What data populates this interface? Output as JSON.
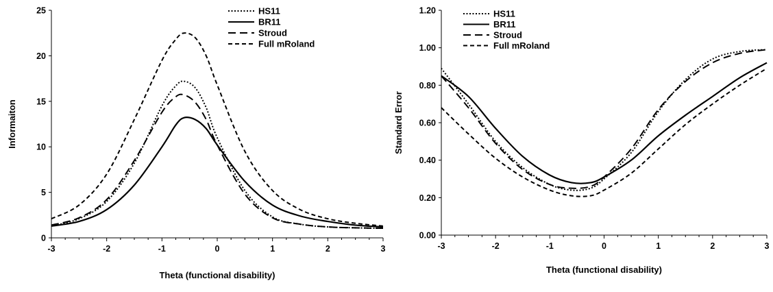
{
  "chart_data": [
    {
      "type": "line",
      "xlabel": "Theta (functional disability)",
      "ylabel": "Informaiton",
      "xlim": [
        -3,
        3
      ],
      "ylim": [
        0,
        25
      ],
      "xticks": [
        -3,
        -2,
        -1,
        0,
        1,
        2,
        3
      ],
      "yticks": [
        0,
        5,
        10,
        15,
        20,
        25
      ],
      "ytick_labels": [
        "0",
        "5",
        "10",
        "15",
        "20",
        "25"
      ],
      "grid": false,
      "legend_position": "top-right",
      "series": [
        {
          "name": "HS11",
          "style": "dotted",
          "x": [
            -3,
            -2.5,
            -2,
            -1.5,
            -1,
            -0.75,
            -0.6,
            -0.4,
            -0.2,
            0,
            0.5,
            1,
            1.5,
            2,
            2.5,
            3
          ],
          "y": [
            1.3,
            2.1,
            4.0,
            8.2,
            14.5,
            16.7,
            17.2,
            16.5,
            14.3,
            11.0,
            5.2,
            2.3,
            1.5,
            1.2,
            1.1,
            1.05
          ]
        },
        {
          "name": "BR11",
          "style": "solid",
          "x": [
            -3,
            -2.5,
            -2,
            -1.5,
            -1,
            -0.75,
            -0.6,
            -0.4,
            -0.2,
            0,
            0.5,
            1,
            1.5,
            2,
            2.5,
            3
          ],
          "y": [
            1.3,
            1.8,
            3.1,
            5.8,
            10.0,
            12.4,
            13.2,
            13.0,
            12.0,
            10.2,
            6.2,
            3.6,
            2.4,
            1.8,
            1.4,
            1.2
          ]
        },
        {
          "name": "Stroud",
          "style": "long-dash",
          "x": [
            -3,
            -2.5,
            -2,
            -1.5,
            -1,
            -0.75,
            -0.6,
            -0.4,
            -0.2,
            0,
            0.5,
            1,
            1.5,
            2,
            2.5,
            3
          ],
          "y": [
            1.4,
            2.2,
            4.2,
            8.5,
            13.8,
            15.5,
            15.7,
            14.9,
            13.0,
            10.2,
            4.8,
            2.2,
            1.5,
            1.2,
            1.1,
            1.05
          ]
        },
        {
          "name": "Full mRoland",
          "style": "short-dash",
          "x": [
            -3,
            -2.5,
            -2,
            -1.5,
            -1,
            -0.75,
            -0.6,
            -0.4,
            -0.2,
            0,
            0.5,
            1,
            1.5,
            2,
            2.5,
            3
          ],
          "y": [
            2.1,
            3.6,
            7.0,
            13.0,
            19.5,
            21.8,
            22.5,
            22.0,
            20.0,
            16.8,
            9.5,
            5.2,
            3.1,
            2.1,
            1.6,
            1.3
          ]
        }
      ]
    },
    {
      "type": "line",
      "xlabel": "Theta (functional disability)",
      "ylabel": "Standard Error",
      "xlim": [
        -3,
        3
      ],
      "ylim": [
        0,
        1.2
      ],
      "xticks": [
        -3,
        -2,
        -1,
        0,
        1,
        2,
        3
      ],
      "yticks": [
        0,
        0.2,
        0.4,
        0.6,
        0.8,
        1.0,
        1.2
      ],
      "ytick_labels": [
        "0.00",
        "0.20",
        "0.40",
        "0.60",
        "0.80",
        "1.00",
        "1.20"
      ],
      "grid": false,
      "legend_position": "top-left",
      "series": [
        {
          "name": "HS11",
          "style": "dotted",
          "x": [
            -3,
            -2.5,
            -2,
            -1.5,
            -1,
            -0.6,
            -0.25,
            0,
            0.5,
            1,
            1.5,
            2,
            2.5,
            3
          ],
          "y": [
            0.89,
            0.7,
            0.5,
            0.36,
            0.27,
            0.24,
            0.25,
            0.3,
            0.44,
            0.66,
            0.83,
            0.94,
            0.98,
            0.99
          ]
        },
        {
          "name": "BR11",
          "style": "solid",
          "x": [
            -3,
            -2.5,
            -2,
            -1.5,
            -1,
            -0.6,
            -0.25,
            0,
            0.5,
            1,
            1.5,
            2,
            2.5,
            3
          ],
          "y": [
            0.85,
            0.74,
            0.57,
            0.42,
            0.32,
            0.28,
            0.28,
            0.31,
            0.4,
            0.53,
            0.64,
            0.74,
            0.84,
            0.92
          ]
        },
        {
          "name": "Stroud",
          "style": "long-dash",
          "x": [
            -3,
            -2.5,
            -2,
            -1.5,
            -1,
            -0.6,
            -0.25,
            0,
            0.5,
            1,
            1.5,
            2,
            2.5,
            3
          ],
          "y": [
            0.85,
            0.68,
            0.49,
            0.35,
            0.27,
            0.25,
            0.26,
            0.31,
            0.46,
            0.67,
            0.82,
            0.92,
            0.97,
            0.99
          ]
        },
        {
          "name": "Full mRoland",
          "style": "short-dash",
          "x": [
            -3,
            -2.5,
            -2,
            -1.5,
            -1,
            -0.6,
            -0.25,
            0,
            0.5,
            1,
            1.5,
            2,
            2.5,
            3
          ],
          "y": [
            0.68,
            0.54,
            0.41,
            0.31,
            0.24,
            0.21,
            0.21,
            0.24,
            0.33,
            0.46,
            0.59,
            0.7,
            0.8,
            0.89
          ]
        }
      ]
    }
  ]
}
